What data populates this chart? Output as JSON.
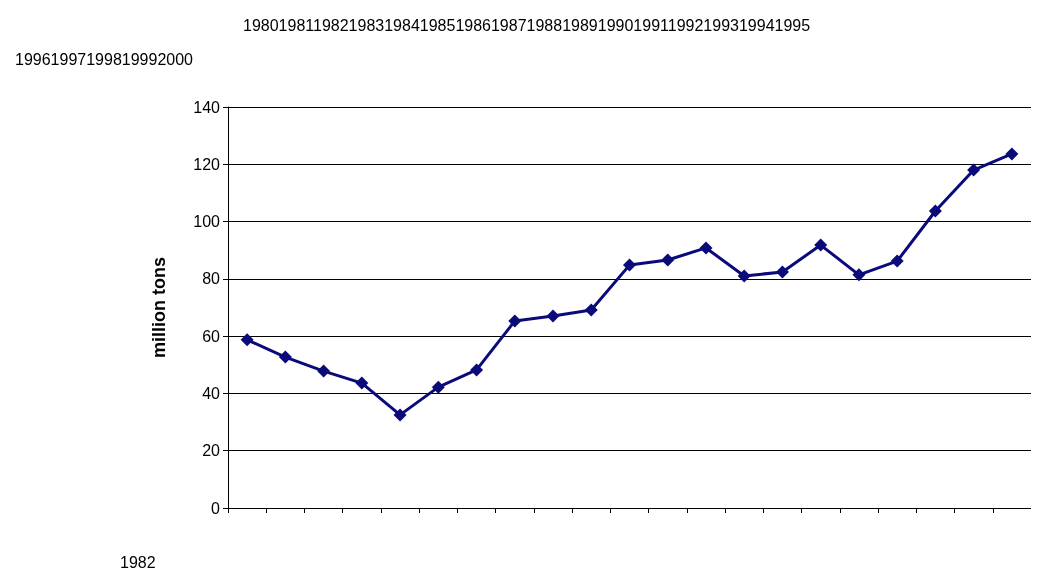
{
  "chart_data": {
    "type": "line",
    "title": "1980198119821983198419851986198719881989199019911992199319941995",
    "subtitle": "19961997199819992000",
    "ylabel": "million tons",
    "annotations": [
      "1982"
    ],
    "categories": [
      null,
      null,
      null,
      null,
      null,
      null,
      null,
      null,
      null,
      null,
      null,
      null,
      null,
      null,
      null,
      null,
      null,
      null,
      null,
      null,
      null
    ],
    "series": [
      {
        "color": "#0a0a7a",
        "values": [
          58.7,
          52.7,
          47.8,
          43.6,
          32.5,
          42.2,
          48.2,
          65.3,
          67,
          69.1,
          84.8,
          86.6,
          90.8,
          81,
          82.4,
          91.8,
          81.4,
          86.2,
          103.7,
          118,
          123.6
        ]
      }
    ],
    "ylim": [
      0,
      140
    ],
    "yticks": [
      0,
      20,
      40,
      60,
      80,
      100,
      120,
      140
    ],
    "grid": "y",
    "marker": "diamond",
    "line_style": "solid"
  }
}
